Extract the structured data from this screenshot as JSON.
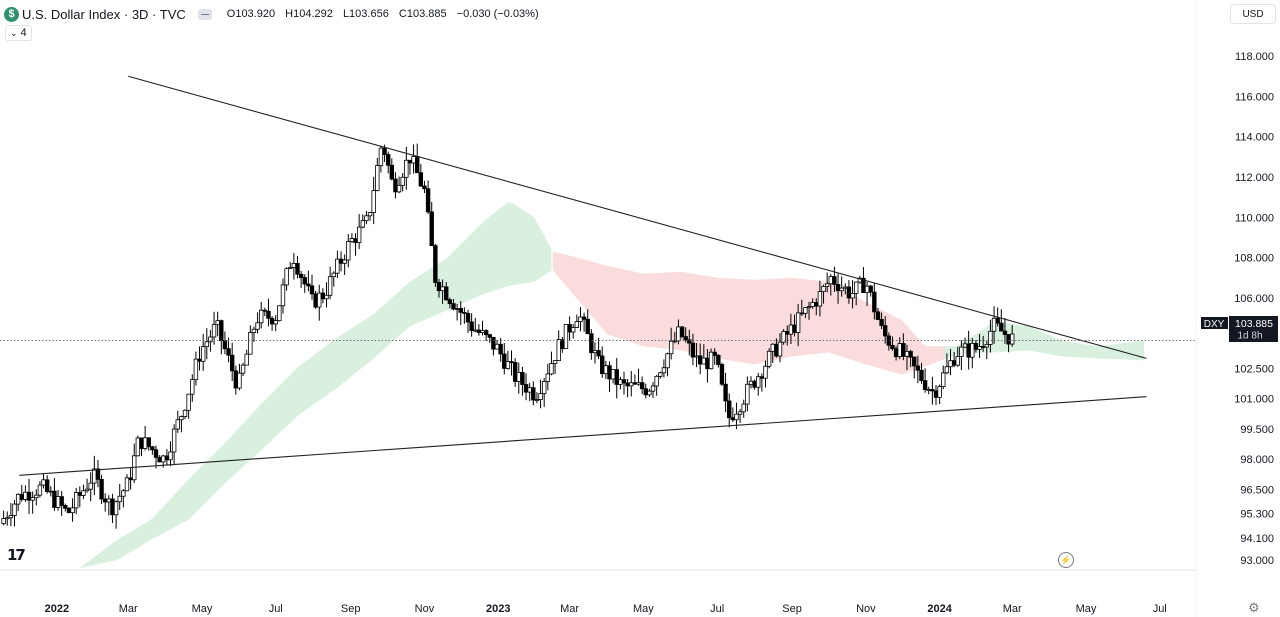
{
  "header": {
    "symbol_icon": "$",
    "title": "U.S. Dollar Index · 3D · TVC",
    "ohlc": {
      "o": "O103.920",
      "h": "H104.292",
      "l": "L103.656",
      "c": "C103.885",
      "chg": "−0.030 (−0.03%)"
    }
  },
  "indicators_collapse": {
    "icon": "chevron-down-icon",
    "count": "4"
  },
  "currency": "USD",
  "price_badge": {
    "symbol": "DXY",
    "price": "103.885",
    "countdown": "1d 8h"
  },
  "colors": {
    "up": "#ffffff",
    "down": "#000000",
    "cloud_bull": "#d9f0df",
    "cloud_bear": "#fadcdc",
    "trend": "#222222"
  },
  "chart_data": {
    "type": "candlestick",
    "ylim": [
      92.5,
      118.8
    ],
    "yticks": [
      118.0,
      116.0,
      114.0,
      112.0,
      110.0,
      108.0,
      106.0,
      104.5,
      103.0,
      102.5,
      101.0,
      99.5,
      98.0,
      96.5,
      95.3,
      94.1,
      93.0
    ],
    "ytick_labels": [
      "118.000",
      "116.000",
      "114.000",
      "112.000",
      "110.000",
      "108.000",
      "106.000",
      "",
      "",
      "102.500",
      "101.000",
      "99.500",
      "98.000",
      "96.500",
      "95.300",
      "94.100",
      "93.000"
    ],
    "xlim": [
      "2021-11-15",
      "2024-07-31"
    ],
    "xticks": [
      {
        "date": "2022-01-01",
        "label": "2022",
        "bold": true
      },
      {
        "date": "2022-03-01",
        "label": "Mar"
      },
      {
        "date": "2022-05-01",
        "label": "May"
      },
      {
        "date": "2022-07-01",
        "label": "Jul"
      },
      {
        "date": "2022-09-01",
        "label": "Sep"
      },
      {
        "date": "2022-11-01",
        "label": "Nov"
      },
      {
        "date": "2023-01-01",
        "label": "2023",
        "bold": true
      },
      {
        "date": "2023-03-01",
        "label": "Mar"
      },
      {
        "date": "2023-05-01",
        "label": "May"
      },
      {
        "date": "2023-07-01",
        "label": "Jul"
      },
      {
        "date": "2023-09-01",
        "label": "Sep"
      },
      {
        "date": "2023-11-01",
        "label": "Nov"
      },
      {
        "date": "2024-01-01",
        "label": "2024",
        "bold": true
      },
      {
        "date": "2024-03-01",
        "label": "Mar"
      },
      {
        "date": "2024-05-01",
        "label": "May"
      },
      {
        "date": "2024-07-01",
        "label": "Jul"
      }
    ],
    "last_price": 103.885,
    "anchors": [
      [
        "2021-11-15",
        94.8
      ],
      [
        "2021-12-01",
        96.2
      ],
      [
        "2021-12-20",
        96.6
      ],
      [
        "2022-01-10",
        95.3
      ],
      [
        "2022-01-31",
        97.2
      ],
      [
        "2022-02-15",
        95.6
      ],
      [
        "2022-03-01",
        96.8
      ],
      [
        "2022-03-10",
        99.0
      ],
      [
        "2022-03-31",
        98.0
      ],
      [
        "2022-04-15",
        100.4
      ],
      [
        "2022-04-30",
        103.4
      ],
      [
        "2022-05-13",
        104.6
      ],
      [
        "2022-05-31",
        101.6
      ],
      [
        "2022-06-15",
        105.0
      ],
      [
        "2022-07-01",
        105.1
      ],
      [
        "2022-07-15",
        108.2
      ],
      [
        "2022-07-31",
        105.8
      ],
      [
        "2022-08-10",
        106.2
      ],
      [
        "2022-08-31",
        108.7
      ],
      [
        "2022-09-15",
        109.8
      ],
      [
        "2022-09-27",
        113.8
      ],
      [
        "2022-10-06",
        111.5
      ],
      [
        "2022-10-20",
        113.0
      ],
      [
        "2022-11-01",
        111.3
      ],
      [
        "2022-11-10",
        107.0
      ],
      [
        "2022-11-25",
        105.8
      ],
      [
        "2022-12-10",
        104.6
      ],
      [
        "2022-12-31",
        103.5
      ],
      [
        "2023-01-15",
        102.1
      ],
      [
        "2023-02-01",
        101.2
      ],
      [
        "2023-02-20",
        103.6
      ],
      [
        "2023-03-08",
        105.3
      ],
      [
        "2023-03-25",
        102.7
      ],
      [
        "2023-04-14",
        101.6
      ],
      [
        "2023-05-05",
        101.5
      ],
      [
        "2023-05-31",
        104.3
      ],
      [
        "2023-06-15",
        102.8
      ],
      [
        "2023-06-30",
        102.9
      ],
      [
        "2023-07-10",
        100.0
      ],
      [
        "2023-07-20",
        100.8
      ],
      [
        "2023-08-15",
        103.2
      ],
      [
        "2023-09-05",
        104.8
      ],
      [
        "2023-09-25",
        106.2
      ],
      [
        "2023-10-03",
        107.0
      ],
      [
        "2023-10-20",
        106.2
      ],
      [
        "2023-11-01",
        106.8
      ],
      [
        "2023-11-15",
        104.2
      ],
      [
        "2023-12-01",
        103.2
      ],
      [
        "2023-12-27",
        101.3
      ],
      [
        "2024-01-15",
        103.3
      ],
      [
        "2024-02-01",
        103.5
      ],
      [
        "2024-02-15",
        104.6
      ],
      [
        "2024-03-03",
        103.885
      ]
    ],
    "cloud": [
      [
        "2022-01-20",
        92.6,
        92.6
      ],
      [
        "2022-02-20",
        93.0,
        94.0
      ],
      [
        "2022-03-20",
        94.0,
        95.0
      ],
      [
        "2022-04-20",
        95.0,
        97.0
      ],
      [
        "2022-05-20",
        96.8,
        98.8
      ],
      [
        "2022-06-20",
        98.5,
        100.8
      ],
      [
        "2022-07-20",
        100.2,
        102.6
      ],
      [
        "2022-08-20",
        101.5,
        104.0
      ],
      [
        "2022-09-20",
        103.0,
        105.2
      ],
      [
        "2022-10-20",
        104.6,
        106.8
      ],
      [
        "2022-11-20",
        105.4,
        108.0
      ],
      [
        "2022-12-20",
        106.2,
        109.8
      ],
      [
        "2023-01-10",
        106.6,
        110.8
      ],
      [
        "2023-01-31",
        106.8,
        110.0
      ],
      [
        "2023-02-15",
        107.4,
        108.3
      ],
      [
        "2023-03-01",
        106.4,
        108.1
      ],
      [
        "2023-04-01",
        104.2,
        107.6
      ],
      [
        "2023-05-01",
        103.6,
        107.2
      ],
      [
        "2023-06-01",
        103.4,
        107.3
      ],
      [
        "2023-07-01",
        103.0,
        107.0
      ],
      [
        "2023-08-01",
        102.7,
        106.9
      ],
      [
        "2023-09-01",
        103.1,
        107.0
      ],
      [
        "2023-10-01",
        103.3,
        106.8
      ],
      [
        "2023-11-01",
        102.7,
        105.8
      ],
      [
        "2023-12-01",
        102.2,
        104.9
      ],
      [
        "2023-12-20",
        102.6,
        103.6
      ],
      [
        "2024-01-15",
        103.2,
        103.6
      ],
      [
        "2024-02-15",
        103.3,
        104.8
      ],
      [
        "2024-03-15",
        103.4,
        104.6
      ],
      [
        "2024-04-10",
        103.1,
        103.9
      ],
      [
        "2024-05-10",
        103.0,
        103.6
      ],
      [
        "2024-06-20",
        102.9,
        103.9
      ]
    ],
    "cloud_bear_range": [
      "2023-02-15",
      "2024-01-05"
    ],
    "trendlines": [
      {
        "name": "upper-trendline",
        "from": [
          "2022-03-01",
          117.0
        ],
        "to": [
          "2024-06-20",
          103.0
        ]
      },
      {
        "name": "lower-trendline",
        "from": [
          "2021-12-01",
          97.2
        ],
        "to": [
          "2024-06-20",
          101.1
        ]
      }
    ]
  }
}
